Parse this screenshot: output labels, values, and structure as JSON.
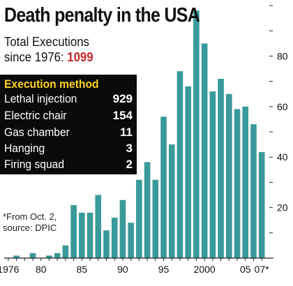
{
  "header": {
    "title": "Death penalty in the USA",
    "subtitle_line1": "Total Executions",
    "subtitle_line2": "since 1976:",
    "total": "1099"
  },
  "method_box": {
    "title": "Execution method",
    "rows": [
      {
        "label": "Lethal injection",
        "value": "929"
      },
      {
        "label": "Electric chair",
        "value": "154"
      },
      {
        "label": "Gas chamber",
        "value": "11"
      },
      {
        "label": "Hanging",
        "value": "3"
      },
      {
        "label": "Firing squad",
        "value": "2"
      }
    ]
  },
  "note": {
    "line1": "*From Oct. 2,",
    "line2": "source: DPIC"
  },
  "colors": {
    "bar": "#3a9a9a",
    "axis": "#222222",
    "method_box_bg": "#0a0a0a",
    "method_title": "#ffd21f",
    "total": "#c0262d"
  },
  "chart_data": {
    "type": "bar",
    "x": [
      1976,
      1977,
      1978,
      1979,
      1980,
      1981,
      1982,
      1983,
      1984,
      1985,
      1986,
      1987,
      1988,
      1989,
      1990,
      1991,
      1992,
      1993,
      1994,
      1995,
      1996,
      1997,
      1998,
      1999,
      2000,
      2001,
      2002,
      2003,
      2004,
      2005,
      2006,
      2007
    ],
    "values": [
      0,
      1,
      0,
      2,
      0,
      1,
      2,
      5,
      21,
      18,
      18,
      25,
      11,
      16,
      23,
      14,
      31,
      38,
      31,
      56,
      45,
      74,
      68,
      98,
      85,
      66,
      71,
      65,
      59,
      60,
      53,
      42
    ],
    "xtick_labels": [
      {
        "x": 1976,
        "label": "1976"
      },
      {
        "x": 1980,
        "label": "80"
      },
      {
        "x": 1985,
        "label": "85"
      },
      {
        "x": 1990,
        "label": "90"
      },
      {
        "x": 1995,
        "label": "95"
      },
      {
        "x": 2000,
        "label": "2000"
      },
      {
        "x": 2005,
        "label": "05"
      },
      {
        "x": 2007,
        "label": "07*"
      }
    ],
    "ytick_labels": [
      20,
      40,
      60,
      80
    ],
    "ylim": [
      0,
      100
    ],
    "y_axis_side": "right",
    "grid": false
  }
}
